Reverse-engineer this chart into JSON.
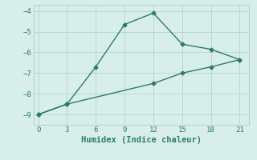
{
  "line1_x": [
    0,
    3,
    6,
    9,
    12,
    15,
    18,
    21
  ],
  "line1_y": [
    -9.0,
    -8.5,
    -6.7,
    -4.65,
    -4.1,
    -5.6,
    -5.85,
    -6.35
  ],
  "line2_x": [
    0,
    3,
    12,
    15,
    18,
    21
  ],
  "line2_y": [
    -9.0,
    -8.5,
    -7.5,
    -7.0,
    -6.7,
    -6.35
  ],
  "line_color": "#2d7b6e",
  "bg_color": "#d8eeea",
  "grid_color": "#b8d8d2",
  "spine_color": "#aacfc8",
  "xlabel": "Humidex (Indice chaleur)",
  "xlim": [
    -0.5,
    22
  ],
  "ylim": [
    -9.5,
    -3.7
  ],
  "xticks": [
    0,
    3,
    6,
    9,
    12,
    15,
    18,
    21
  ],
  "yticks": [
    -9,
    -8,
    -7,
    -6,
    -5,
    -4
  ],
  "marker": "D",
  "marker_size": 2.5,
  "line_width": 1.0,
  "tick_fontsize": 6.5,
  "xlabel_fontsize": 7.5
}
